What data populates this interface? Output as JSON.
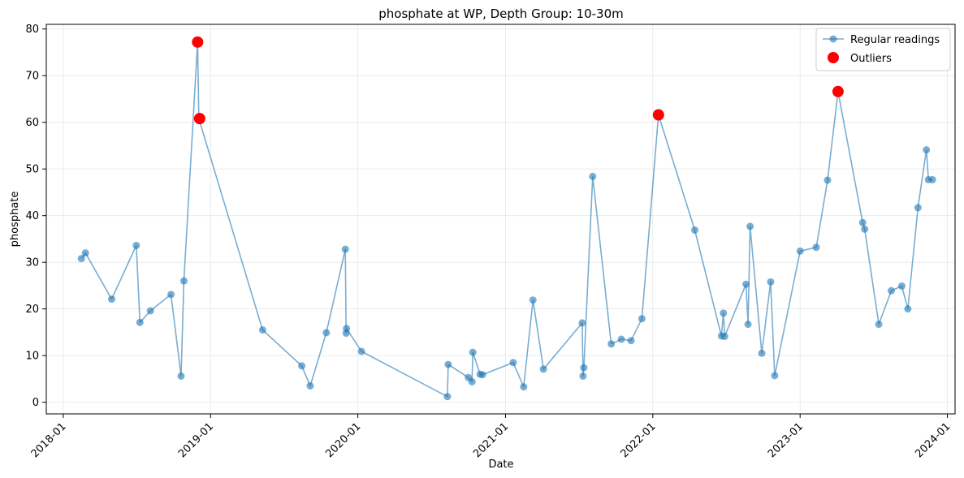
{
  "chart_data": {
    "type": "line",
    "title": "phosphate at WP, Depth Group: 10-30m",
    "xlabel": "Date",
    "ylabel": "phosphate",
    "x_type": "date",
    "xlim": [
      "2017-11-20",
      "2024-01-20"
    ],
    "ylim": [
      -2.5,
      81
    ],
    "x_ticks": [
      "2018-01-01",
      "2019-01-01",
      "2020-01-01",
      "2021-01-01",
      "2022-01-01",
      "2023-01-01",
      "2024-01-01"
    ],
    "x_tick_labels": [
      "2018-01",
      "2019-01",
      "2020-01",
      "2021-01",
      "2022-01",
      "2023-01",
      "2024-01"
    ],
    "y_ticks": [
      0,
      10,
      20,
      30,
      40,
      50,
      60,
      70,
      80
    ],
    "y_tick_labels": [
      "0",
      "10",
      "20",
      "30",
      "40",
      "50",
      "60",
      "70",
      "80"
    ],
    "grid": true,
    "legend_position": "top-right",
    "series": [
      {
        "name": "Regular readings",
        "style": "line-markers",
        "color": "#1f77b4",
        "x": [
          "2018-02-15",
          "2018-02-25",
          "2018-05-01",
          "2018-07-01",
          "2018-07-10",
          "2018-08-05",
          "2018-09-25",
          "2018-10-20",
          "2018-10-27",
          "2018-11-30",
          "2018-12-03",
          "2019-05-10",
          "2019-08-15",
          "2019-09-05",
          "2019-10-15",
          "2019-12-01",
          "2019-12-03",
          "2019-12-04",
          "2020-01-10",
          "2020-08-10",
          "2020-08-12",
          "2020-10-01",
          "2020-10-10",
          "2020-10-12",
          "2020-10-30",
          "2020-11-05",
          "2021-01-20",
          "2021-02-15",
          "2021-03-10",
          "2021-04-05",
          "2021-07-10",
          "2021-07-12",
          "2021-07-14",
          "2021-08-05",
          "2021-09-20",
          "2021-10-15",
          "2021-11-08",
          "2021-12-05",
          "2022-01-15",
          "2022-04-15",
          "2022-06-20",
          "2022-06-25",
          "2022-06-28",
          "2022-08-20",
          "2022-08-25",
          "2022-08-30",
          "2022-09-28",
          "2022-10-20",
          "2022-10-30",
          "2023-01-01",
          "2023-02-10",
          "2023-03-10",
          "2023-04-05",
          "2023-06-05",
          "2023-06-10",
          "2023-07-15",
          "2023-08-15",
          "2023-09-10",
          "2023-09-25",
          "2023-10-20",
          "2023-11-10",
          "2023-11-15",
          "2023-11-25"
        ],
        "values": [
          30.8,
          32.0,
          22.1,
          33.6,
          17.1,
          19.6,
          23.1,
          5.6,
          26.0,
          77.2,
          60.8,
          15.5,
          7.8,
          3.5,
          14.9,
          32.8,
          14.8,
          15.8,
          10.9,
          1.2,
          8.1,
          5.3,
          4.4,
          10.7,
          6.0,
          5.9,
          8.5,
          3.3,
          21.9,
          7.1,
          17.0,
          5.6,
          7.4,
          48.4,
          12.5,
          13.5,
          13.2,
          17.9,
          61.6,
          36.9,
          14.2,
          19.1,
          14.1,
          25.3,
          16.7,
          37.7,
          10.5,
          25.8,
          5.7,
          32.4,
          33.2,
          47.6,
          66.6,
          38.5,
          37.1,
          16.7,
          23.9,
          24.9,
          20.0,
          41.7,
          54.1,
          47.7,
          47.7
        ]
      },
      {
        "name": "Outliers",
        "style": "markers",
        "color": "#ff0000",
        "x": [
          "2018-11-30",
          "2018-12-05",
          "2022-01-15",
          "2023-04-05"
        ],
        "values": [
          77.2,
          60.8,
          61.6,
          66.6
        ]
      }
    ]
  }
}
